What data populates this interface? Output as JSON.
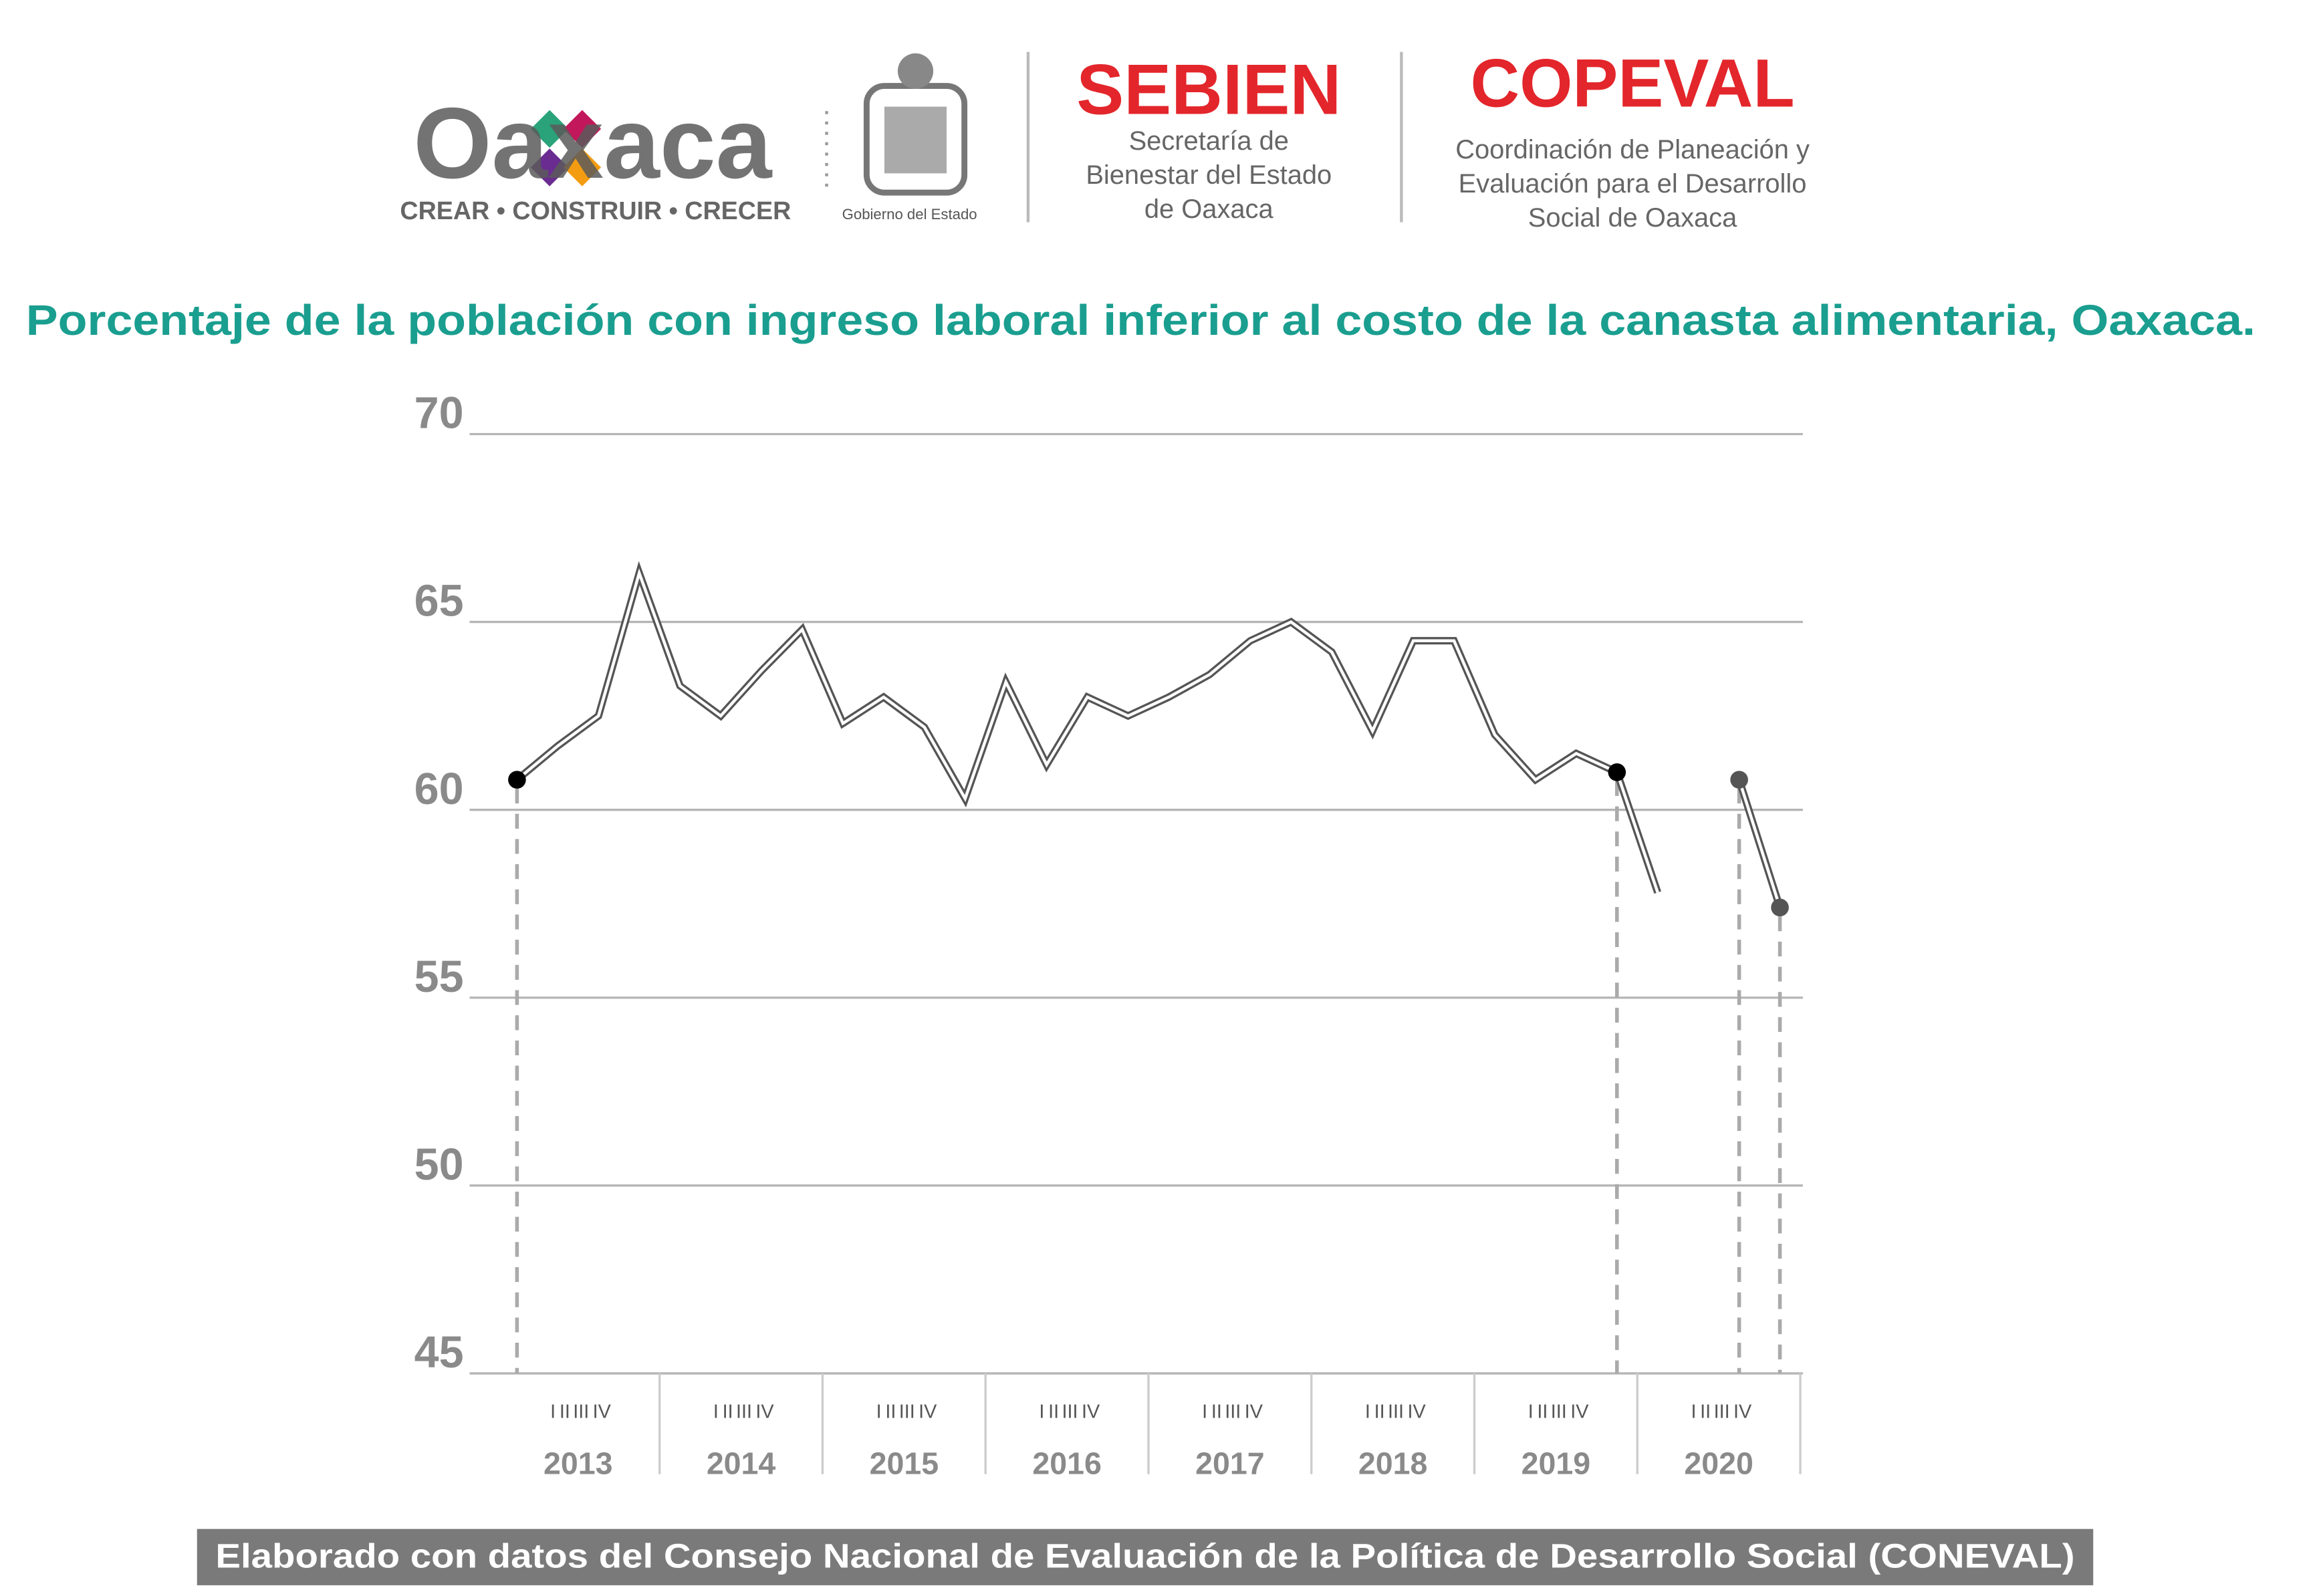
{
  "header": {
    "logo": "Oaxaca",
    "slogan": "CREAR • CONSTRUIR • CRECER",
    "government": "Gobierno del Estado",
    "org1": {
      "name": "SEBIEN",
      "lines": [
        "Secretaría de",
        "Bienestar del Estado",
        "de Oaxaca"
      ]
    },
    "org2": {
      "name": "COPEVAL",
      "lines": [
        "Coordinación de Planeación y",
        "Evaluación para el Desarrollo",
        "Social de Oaxaca"
      ]
    }
  },
  "chart_data": {
    "type": "line",
    "title": "Porcentaje de la población con ingreso laboral inferior al costo de la canasta alimentaria, Oaxaca.",
    "x": [
      "I",
      "II",
      "III",
      "IV",
      "I",
      "II",
      "III",
      "IV",
      "I",
      "II",
      "III",
      "IV",
      "I",
      "II",
      "III",
      "IV",
      "I",
      "II",
      "III",
      "IV",
      "I",
      "II",
      "III",
      "IV",
      "I",
      "II",
      "III",
      "IV",
      "I",
      "II",
      "III",
      "IV"
    ],
    "years": [
      "2013",
      "2014",
      "2015",
      "2016",
      "2017",
      "2018",
      "2019",
      "2020"
    ],
    "series": [
      {
        "color": "#555555",
        "values": [
          60.8,
          61.7,
          62.5,
          66.3,
          63.3,
          62.5,
          63.7,
          64.8,
          62.3,
          63.0,
          62.2,
          60.3,
          63.4,
          61.2,
          63.0,
          62.5,
          63.0,
          63.6,
          64.5,
          65.0,
          64.2,
          62.1,
          64.5,
          64.5,
          62.0,
          60.8,
          61.5,
          61.0,
          57.8,
          null,
          60.8,
          57.4
        ]
      }
    ],
    "ylim": [
      45,
      70
    ],
    "yticks": [
      45,
      50,
      55,
      60,
      65,
      70
    ],
    "grid": true
  },
  "footer": "Elaborado con datos del Consejo Nacional de Evaluación de la Política de Desarrollo Social (CONEVAL)"
}
